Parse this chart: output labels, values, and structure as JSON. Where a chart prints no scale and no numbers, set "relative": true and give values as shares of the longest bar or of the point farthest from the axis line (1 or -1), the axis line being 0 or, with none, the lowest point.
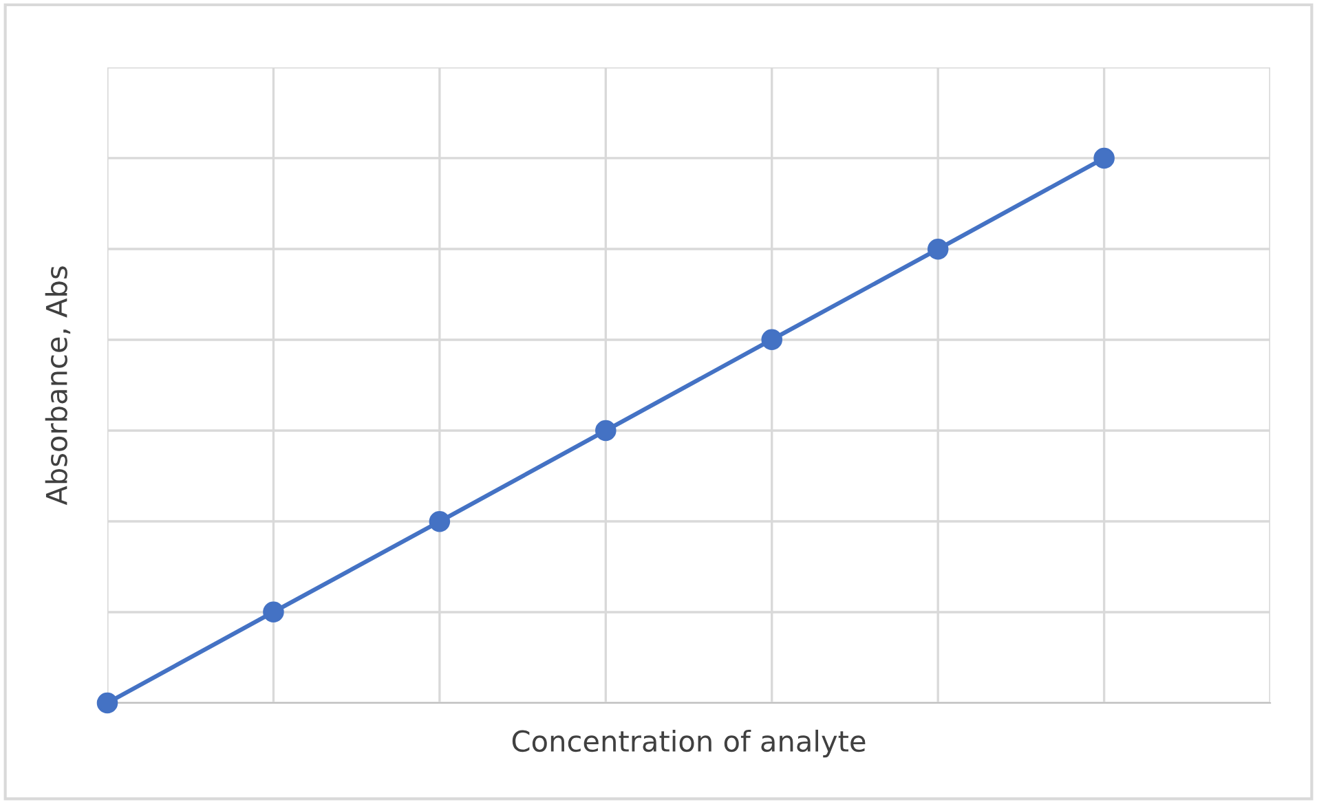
{
  "chart_data": {
    "type": "line",
    "relative": true,
    "xlabel": "Concentration of analyte",
    "ylabel": "Absorbance, Abs",
    "categories": [
      null,
      null,
      null,
      null,
      null,
      null,
      null,
      null
    ],
    "series": [
      {
        "color": "#4472c4",
        "values": [
          0,
          0.167,
          0.333,
          0.5,
          0.667,
          0.833,
          1,
          null
        ]
      }
    ],
    "marker": "circle",
    "line_style": "solid",
    "grid": true,
    "tick_labels": false,
    "legend": false
  }
}
